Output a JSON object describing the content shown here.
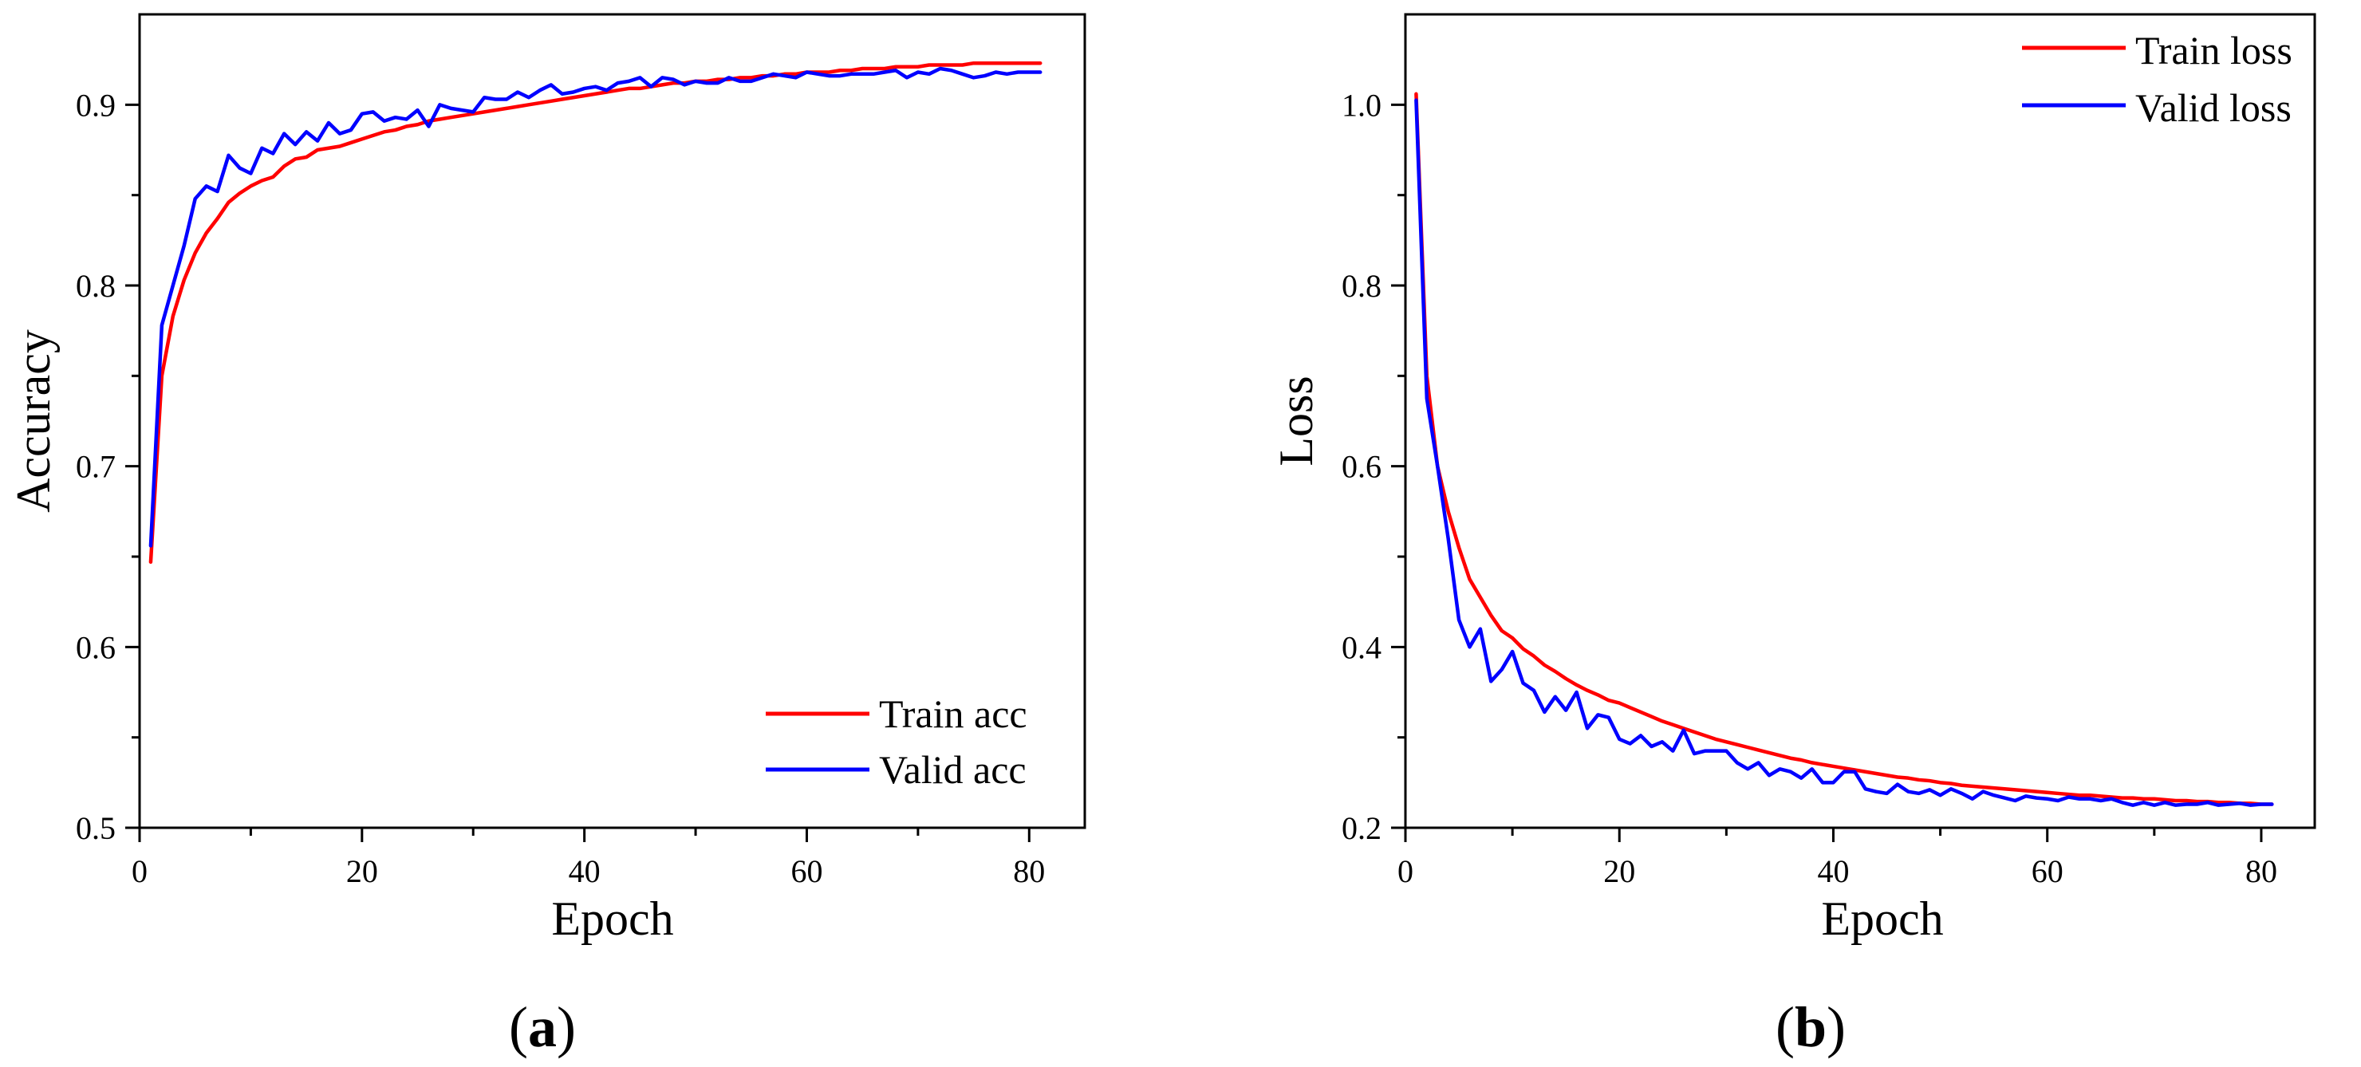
{
  "colors": {
    "train": "#ff0000",
    "valid": "#0000ff",
    "axis": "#000000"
  },
  "chart_data": [
    {
      "type": "line",
      "panel_label": "(a)",
      "panel_letter": "a",
      "xlabel": "Epoch",
      "ylabel": "Accuracy",
      "xlim": [
        0,
        85
      ],
      "ylim": [
        0.5,
        0.95
      ],
      "xticks": [
        0,
        20,
        40,
        60,
        80
      ],
      "xtick_labels": [
        "0",
        "20",
        "40",
        "60",
        "80"
      ],
      "yticks": [
        0.5,
        0.6,
        0.7,
        0.8,
        0.9
      ],
      "ytick_labels": [
        "0.5",
        "0.6",
        "0.7",
        "0.8",
        "0.9"
      ],
      "grid": false,
      "legend_position": "bottom-right",
      "x": [
        1,
        2,
        3,
        4,
        5,
        6,
        7,
        8,
        9,
        10,
        11,
        12,
        13,
        14,
        15,
        16,
        17,
        18,
        19,
        20,
        21,
        22,
        23,
        24,
        25,
        26,
        27,
        28,
        29,
        30,
        31,
        32,
        33,
        34,
        35,
        36,
        37,
        38,
        39,
        40,
        41,
        42,
        43,
        44,
        45,
        46,
        47,
        48,
        49,
        50,
        51,
        52,
        53,
        54,
        55,
        56,
        57,
        58,
        59,
        60,
        61,
        62,
        63,
        64,
        65,
        66,
        67,
        68,
        69,
        70,
        71,
        72,
        73,
        74,
        75,
        76,
        77,
        78,
        79,
        80,
        81
      ],
      "series": [
        {
          "name": "Train acc",
          "color_key": "train",
          "values": [
            0.647,
            0.75,
            0.783,
            0.803,
            0.818,
            0.829,
            0.837,
            0.846,
            0.851,
            0.855,
            0.858,
            0.86,
            0.866,
            0.87,
            0.871,
            0.875,
            0.876,
            0.877,
            0.879,
            0.881,
            0.883,
            0.885,
            0.886,
            0.888,
            0.889,
            0.891,
            0.892,
            0.893,
            0.894,
            0.895,
            0.896,
            0.897,
            0.898,
            0.899,
            0.9,
            0.901,
            0.902,
            0.903,
            0.904,
            0.905,
            0.906,
            0.907,
            0.908,
            0.909,
            0.909,
            0.91,
            0.911,
            0.912,
            0.912,
            0.913,
            0.913,
            0.914,
            0.914,
            0.915,
            0.915,
            0.916,
            0.916,
            0.917,
            0.917,
            0.918,
            0.918,
            0.918,
            0.919,
            0.919,
            0.92,
            0.92,
            0.92,
            0.921,
            0.921,
            0.921,
            0.922,
            0.922,
            0.922,
            0.922,
            0.923,
            0.923,
            0.923,
            0.923,
            0.923,
            0.923,
            0.923
          ]
        },
        {
          "name": "Valid acc",
          "color_key": "valid",
          "values": [
            0.656,
            0.778,
            0.8,
            0.822,
            0.848,
            0.855,
            0.852,
            0.872,
            0.865,
            0.862,
            0.876,
            0.873,
            0.884,
            0.878,
            0.885,
            0.88,
            0.89,
            0.884,
            0.886,
            0.895,
            0.896,
            0.891,
            0.893,
            0.892,
            0.897,
            0.888,
            0.9,
            0.898,
            0.897,
            0.896,
            0.904,
            0.903,
            0.903,
            0.907,
            0.904,
            0.908,
            0.911,
            0.906,
            0.907,
            0.909,
            0.91,
            0.908,
            0.912,
            0.913,
            0.915,
            0.91,
            0.915,
            0.914,
            0.911,
            0.913,
            0.912,
            0.912,
            0.915,
            0.913,
            0.913,
            0.915,
            0.917,
            0.916,
            0.915,
            0.918,
            0.917,
            0.916,
            0.916,
            0.917,
            0.917,
            0.917,
            0.918,
            0.919,
            0.915,
            0.918,
            0.917,
            0.92,
            0.919,
            0.917,
            0.915,
            0.916,
            0.918,
            0.917,
            0.918,
            0.918,
            0.918
          ]
        }
      ]
    },
    {
      "type": "line",
      "panel_label": "(b)",
      "panel_letter": "b",
      "xlabel": "Epoch",
      "ylabel": "Loss",
      "xlim": [
        0,
        85
      ],
      "ylim": [
        0.2,
        1.1
      ],
      "xticks": [
        0,
        20,
        40,
        60,
        80
      ],
      "xtick_labels": [
        "0",
        "20",
        "40",
        "60",
        "80"
      ],
      "yticks": [
        0.2,
        0.4,
        0.6,
        0.8,
        1.0
      ],
      "ytick_labels": [
        "0.2",
        "0.4",
        "0.6",
        "0.8",
        "1.0"
      ],
      "grid": false,
      "legend_position": "top-right",
      "x": [
        1,
        2,
        3,
        4,
        5,
        6,
        7,
        8,
        9,
        10,
        11,
        12,
        13,
        14,
        15,
        16,
        17,
        18,
        19,
        20,
        21,
        22,
        23,
        24,
        25,
        26,
        27,
        28,
        29,
        30,
        31,
        32,
        33,
        34,
        35,
        36,
        37,
        38,
        39,
        40,
        41,
        42,
        43,
        44,
        45,
        46,
        47,
        48,
        49,
        50,
        51,
        52,
        53,
        54,
        55,
        56,
        57,
        58,
        59,
        60,
        61,
        62,
        63,
        64,
        65,
        66,
        67,
        68,
        69,
        70,
        71,
        72,
        73,
        74,
        75,
        76,
        77,
        78,
        79,
        80,
        81
      ],
      "series": [
        {
          "name": "Train loss",
          "color_key": "train",
          "values": [
            1.012,
            0.7,
            0.6,
            0.55,
            0.51,
            0.475,
            0.455,
            0.435,
            0.418,
            0.41,
            0.398,
            0.39,
            0.38,
            0.373,
            0.365,
            0.358,
            0.352,
            0.347,
            0.341,
            0.338,
            0.333,
            0.328,
            0.323,
            0.318,
            0.314,
            0.31,
            0.306,
            0.302,
            0.298,
            0.295,
            0.292,
            0.289,
            0.286,
            0.283,
            0.28,
            0.277,
            0.275,
            0.272,
            0.27,
            0.268,
            0.266,
            0.264,
            0.262,
            0.26,
            0.258,
            0.256,
            0.255,
            0.253,
            0.252,
            0.25,
            0.249,
            0.247,
            0.246,
            0.245,
            0.244,
            0.243,
            0.242,
            0.241,
            0.24,
            0.239,
            0.238,
            0.237,
            0.236,
            0.236,
            0.235,
            0.234,
            0.233,
            0.233,
            0.232,
            0.232,
            0.231,
            0.23,
            0.23,
            0.229,
            0.229,
            0.228,
            0.228,
            0.227,
            0.227,
            0.226,
            0.226
          ]
        },
        {
          "name": "Valid loss",
          "color_key": "valid",
          "values": [
            1.005,
            0.675,
            0.6,
            0.52,
            0.43,
            0.4,
            0.42,
            0.362,
            0.375,
            0.395,
            0.36,
            0.352,
            0.328,
            0.345,
            0.33,
            0.35,
            0.31,
            0.325,
            0.322,
            0.298,
            0.293,
            0.302,
            0.29,
            0.295,
            0.285,
            0.308,
            0.282,
            0.285,
            0.285,
            0.285,
            0.272,
            0.265,
            0.272,
            0.258,
            0.265,
            0.262,
            0.255,
            0.265,
            0.25,
            0.25,
            0.262,
            0.262,
            0.243,
            0.24,
            0.238,
            0.248,
            0.24,
            0.238,
            0.242,
            0.236,
            0.243,
            0.238,
            0.232,
            0.24,
            0.236,
            0.233,
            0.23,
            0.235,
            0.233,
            0.232,
            0.23,
            0.234,
            0.232,
            0.232,
            0.23,
            0.232,
            0.228,
            0.225,
            0.228,
            0.225,
            0.228,
            0.225,
            0.226,
            0.226,
            0.228,
            0.225,
            0.226,
            0.227,
            0.225,
            0.226,
            0.226
          ]
        }
      ]
    }
  ]
}
